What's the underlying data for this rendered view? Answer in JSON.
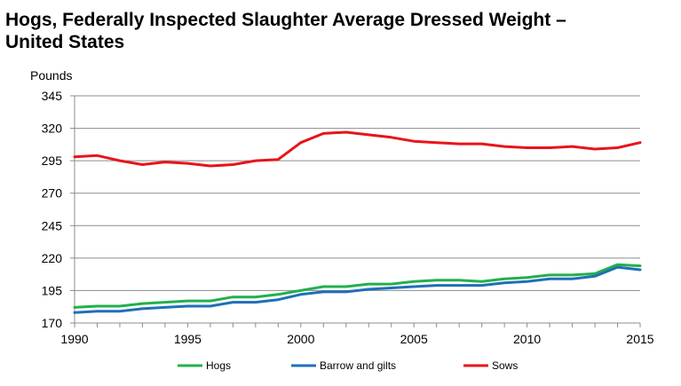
{
  "chart_data": {
    "type": "line",
    "title": "Hogs, Federally Inspected Slaughter Average Dressed Weight – United States",
    "ylabel": "Pounds",
    "xlabel": "",
    "ylim": [
      170,
      345
    ],
    "xlim": [
      1990,
      2015
    ],
    "yticks": [
      170,
      195,
      220,
      245,
      270,
      295,
      320,
      345
    ],
    "xticks": [
      1990,
      1995,
      2000,
      2005,
      2010,
      2015
    ],
    "grid": "horizontal",
    "legend_position": "bottom",
    "x": [
      1990,
      1991,
      1992,
      1993,
      1994,
      1995,
      1996,
      1997,
      1998,
      1999,
      2000,
      2001,
      2002,
      2003,
      2004,
      2005,
      2006,
      2007,
      2008,
      2009,
      2010,
      2011,
      2012,
      2013,
      2014,
      2015
    ],
    "series": [
      {
        "name": "Hogs",
        "color": "#22b04c",
        "values": [
          182,
          183,
          183,
          185,
          186,
          187,
          187,
          190,
          190,
          192,
          195,
          198,
          198,
          200,
          200,
          202,
          203,
          203,
          202,
          204,
          205,
          207,
          207,
          208,
          215,
          214
        ]
      },
      {
        "name": "Barrow and gilts",
        "color": "#1f6fb8",
        "values": [
          178,
          179,
          179,
          181,
          182,
          183,
          183,
          186,
          186,
          188,
          192,
          194,
          194,
          196,
          197,
          198,
          199,
          199,
          199,
          201,
          202,
          204,
          204,
          206,
          213,
          211
        ]
      },
      {
        "name": "Sows",
        "color": "#e8141b",
        "values": [
          298,
          299,
          295,
          292,
          294,
          293,
          291,
          292,
          295,
          296,
          309,
          316,
          317,
          315,
          313,
          310,
          309,
          308,
          308,
          306,
          305,
          305,
          306,
          304,
          305,
          309
        ]
      }
    ]
  }
}
